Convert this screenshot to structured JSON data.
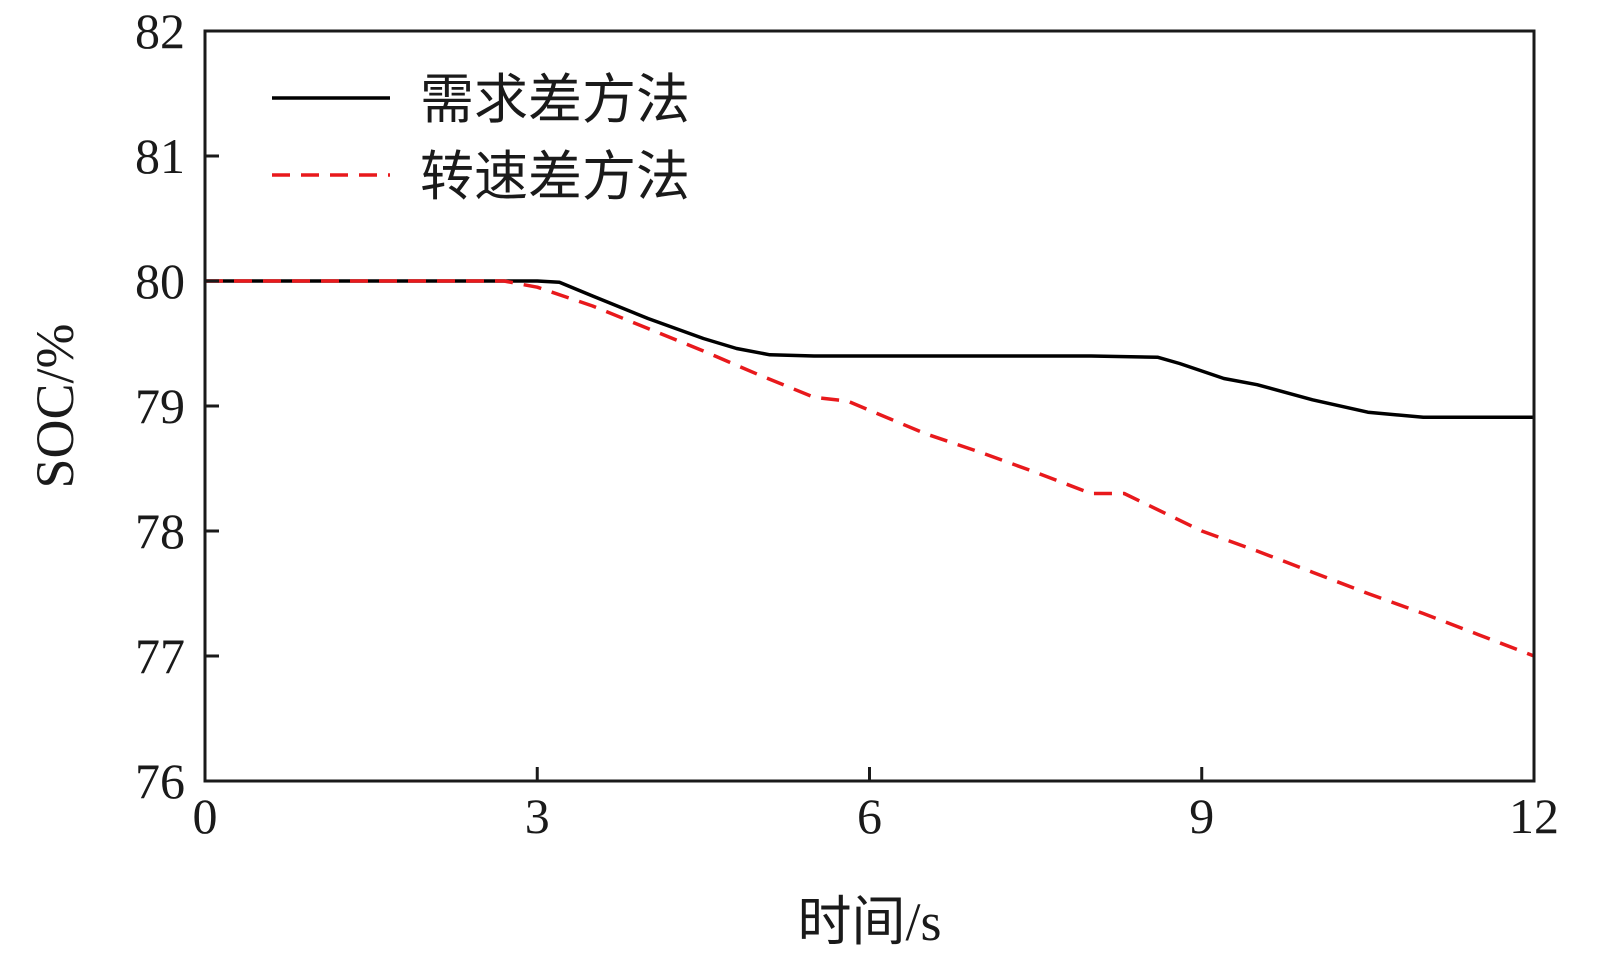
{
  "chart_data": {
    "type": "line",
    "xlabel": "时间/s",
    "ylabel": "SOC/%",
    "xlim": [
      0,
      12
    ],
    "ylim": [
      76,
      82
    ],
    "xticks": [
      0,
      3,
      6,
      9,
      12
    ],
    "yticks": [
      76,
      77,
      78,
      79,
      80,
      81,
      82
    ],
    "grid": false,
    "legend_position": "top-left",
    "series": [
      {
        "name": "需求差方法",
        "color": "#000000",
        "style": "solid",
        "x": [
          0,
          1,
          2,
          3,
          3.2,
          3.5,
          4,
          4.5,
          4.8,
          5.1,
          5.5,
          6,
          7,
          8,
          8.6,
          8.8,
          9,
          9.2,
          9.5,
          10,
          10.5,
          11,
          11.5,
          12
        ],
        "y": [
          80,
          80,
          80,
          80,
          79.99,
          79.88,
          79.7,
          79.54,
          79.46,
          79.41,
          79.4,
          79.4,
          79.4,
          79.4,
          79.39,
          79.34,
          79.28,
          79.22,
          79.17,
          79.05,
          78.95,
          78.91,
          78.91,
          78.91
        ]
      },
      {
        "name": "转速差方法",
        "color": "#e8191c",
        "style": "dashed",
        "x": [
          0,
          1,
          2,
          2.7,
          3,
          3.5,
          4,
          4.5,
          5,
          5.5,
          5.8,
          6.5,
          7,
          7.5,
          8,
          8.3,
          9,
          9.5,
          10,
          10.5,
          11,
          11.5,
          12
        ],
        "y": [
          80,
          80,
          80,
          80,
          79.95,
          79.8,
          79.62,
          79.44,
          79.25,
          79.07,
          79.04,
          78.78,
          78.63,
          78.47,
          78.3,
          78.3,
          78.0,
          77.84,
          77.67,
          77.5,
          77.34,
          77.17,
          77.0
        ]
      }
    ]
  }
}
